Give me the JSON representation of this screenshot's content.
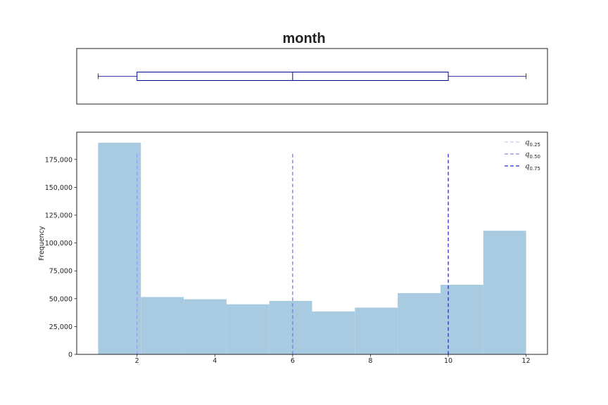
{
  "chart_data": [
    {
      "type": "box",
      "title": "month",
      "orientation": "horizontal",
      "whisker_low": 1,
      "q1": 2,
      "median": 6,
      "q3": 10,
      "whisker_high": 12,
      "color": "#00008b",
      "xlim": [
        0.45,
        12.55
      ]
    },
    {
      "type": "bar",
      "subtype": "histogram",
      "ylabel": "Frequency",
      "xlabel": "",
      "bins": [
        {
          "x0": 1.0,
          "x1": 2.1,
          "value": 190000
        },
        {
          "x0": 2.1,
          "x1": 3.2,
          "value": 51500
        },
        {
          "x0": 3.2,
          "x1": 4.3,
          "value": 49500
        },
        {
          "x0": 4.3,
          "x1": 5.4,
          "value": 45000
        },
        {
          "x0": 5.4,
          "x1": 6.5,
          "value": 48000
        },
        {
          "x0": 6.5,
          "x1": 7.6,
          "value": 38500
        },
        {
          "x0": 7.6,
          "x1": 8.7,
          "value": 42000
        },
        {
          "x0": 8.7,
          "x1": 9.8,
          "value": 55000
        },
        {
          "x0": 9.8,
          "x1": 10.9,
          "value": 62500
        },
        {
          "x0": 10.9,
          "x1": 12.0,
          "value": 111000
        }
      ],
      "bar_color": "#a9cbe2",
      "xlim": [
        0.45,
        12.55
      ],
      "ylim": [
        0,
        199500
      ],
      "xticks": [
        2,
        4,
        6,
        8,
        10,
        12
      ],
      "xtick_labels": [
        "2",
        "4",
        "6",
        "8",
        "10",
        "12"
      ],
      "yticks": [
        0,
        25000,
        50000,
        75000,
        100000,
        125000,
        150000,
        175000
      ],
      "ytick_labels": [
        "0",
        "25,000",
        "50,000",
        "75,000",
        "100,000",
        "125,000",
        "150,000",
        "175,000"
      ],
      "quantile_lines": [
        {
          "x": 2,
          "ymax": 180000,
          "color": "#9a9af5"
        },
        {
          "x": 6,
          "ymax": 180000,
          "color": "#7777ef"
        },
        {
          "x": 10,
          "ymax": 180000,
          "color": "#2a2ae6"
        }
      ],
      "legend": {
        "position": "upper-right",
        "entries": [
          {
            "symbol": "q",
            "sub": "0.25",
            "color": "#c8c8fa"
          },
          {
            "symbol": "q",
            "sub": "0.50",
            "color": "#8a8af2"
          },
          {
            "symbol": "q",
            "sub": "0.75",
            "color": "#2a2ae6"
          }
        ]
      }
    }
  ]
}
